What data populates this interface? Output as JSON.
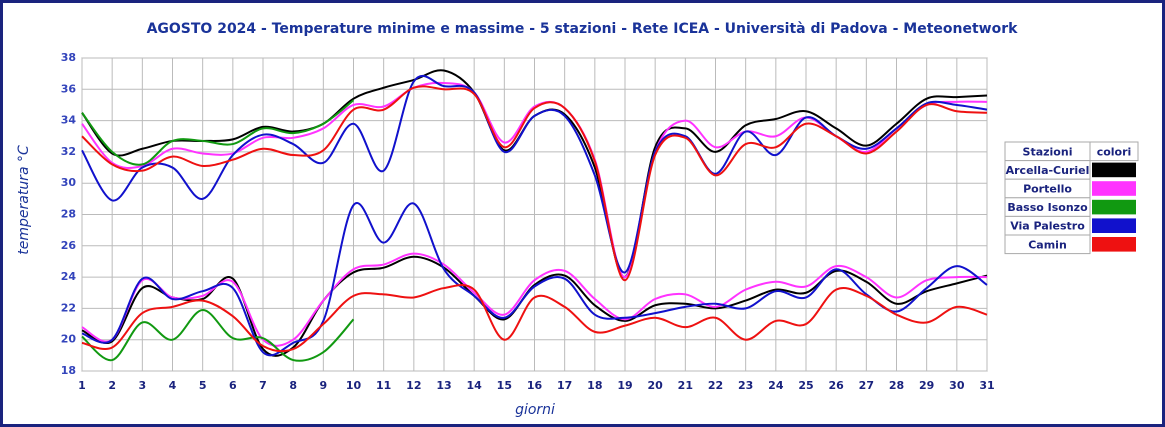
{
  "chart_data": {
    "type": "line",
    "title": "AGOSTO 2024 - Temperature minime e massime - 5 stazioni -  Rete ICEA - Università di Padova - Meteonetwork",
    "x_label": "giorni",
    "y_label": "temperatura °C",
    "legend_headers": [
      "Stazioni",
      "colori"
    ],
    "x": [
      1,
      2,
      3,
      4,
      5,
      6,
      7,
      8,
      9,
      10,
      11,
      12,
      13,
      14,
      15,
      16,
      17,
      18,
      19,
      20,
      21,
      22,
      23,
      24,
      25,
      26,
      27,
      28,
      29,
      30,
      31
    ],
    "xlim": [
      1,
      31
    ],
    "xticks": [
      1,
      2,
      3,
      4,
      5,
      6,
      7,
      8,
      9,
      10,
      11,
      12,
      13,
      14,
      15,
      16,
      17,
      18,
      19,
      20,
      21,
      22,
      23,
      24,
      25,
      26,
      27,
      28,
      29,
      30,
      31
    ],
    "ylim": [
      18,
      38
    ],
    "yticks": [
      18,
      20,
      22,
      24,
      26,
      28,
      30,
      32,
      34,
      36,
      38
    ],
    "grid": true,
    "series": [
      {
        "name": "Arcella-Curiel",
        "color": "#000000",
        "values": [
          34.5,
          31.9,
          32.2,
          32.7,
          32.7,
          32.8,
          33.6,
          33.3,
          33.8,
          35.4,
          36.1,
          36.6,
          37.2,
          35.8,
          32.1,
          34.3,
          34.4,
          31,
          24,
          32.3,
          33.5,
          32,
          33.7,
          34.1,
          34.6,
          33.5,
          32.4,
          33.8,
          35.4,
          35.5,
          35.6
        ],
        "values_min": [
          20.6,
          19.9,
          23.3,
          22.7,
          22.6,
          23.9,
          19.4,
          19.5,
          22.5,
          24.3,
          24.6,
          25.3,
          24.6,
          22.8,
          21.3,
          23.5,
          24.1,
          22.2,
          21.2,
          22.2,
          22.3,
          22,
          22.5,
          23.2,
          23,
          24.4,
          23.7,
          22.3,
          23.1,
          23.6,
          24.1
        ]
      },
      {
        "name": "Portello",
        "color": "#ff33ff",
        "values": [
          33.8,
          31.3,
          31.1,
          32.2,
          31.9,
          31.9,
          32.9,
          32.9,
          33.5,
          35,
          34.9,
          36.1,
          36.4,
          35.8,
          32.6,
          34.9,
          34.8,
          31.5,
          24,
          32,
          34,
          32.3,
          33.3,
          33,
          34.2,
          33,
          32,
          33.5,
          35,
          35.2,
          35.2
        ],
        "values_min": [
          20.8,
          20,
          23.8,
          22.7,
          22.8,
          23.7,
          20,
          20,
          22.5,
          24.5,
          24.8,
          25.5,
          24.8,
          23,
          21.6,
          23.8,
          24.4,
          22.6,
          21.3,
          22.6,
          22.9,
          22.1,
          23.2,
          23.7,
          23.4,
          24.7,
          24,
          22.7,
          23.8,
          24,
          24
        ]
      },
      {
        "name": "Basso Isonzo",
        "color": "#119911",
        "values": [
          34.5,
          32,
          31.2,
          32.7,
          32.7,
          32.5,
          33.5,
          33.2,
          33.8,
          35.3,
          null,
          null,
          null,
          null,
          null,
          null,
          null,
          null,
          null,
          null,
          null,
          null,
          null,
          null,
          null,
          null,
          null,
          null,
          null,
          null,
          null
        ],
        "values_min": [
          20.2,
          18.7,
          21.1,
          20,
          21.9,
          20.1,
          20.1,
          18.7,
          19.2,
          21.3,
          null,
          null,
          null,
          null,
          null,
          null,
          null,
          null,
          null,
          null,
          null,
          null,
          null,
          null,
          null,
          null,
          null,
          null,
          null,
          null,
          null
        ]
      },
      {
        "name": "Via Palestro",
        "color": "#1111cc",
        "values": [
          32.1,
          28.9,
          31,
          31,
          29,
          31.8,
          33.1,
          32.5,
          31.3,
          33.8,
          30.8,
          36.5,
          36.2,
          35.8,
          32,
          34.3,
          34.3,
          30.5,
          24.3,
          32,
          33,
          30.6,
          33.3,
          31.8,
          34.2,
          33,
          32.2,
          33.5,
          35.1,
          35,
          34.7
        ],
        "values_min": [
          20.4,
          20,
          23.9,
          22.6,
          23.1,
          23.3,
          19.2,
          19.8,
          21.2,
          28.6,
          26.2,
          28.7,
          24.5,
          22.8,
          21.4,
          23.4,
          23.9,
          21.6,
          21.4,
          21.7,
          22.1,
          22.3,
          22,
          23.1,
          22.7,
          24.5,
          22.9,
          21.8,
          23.3,
          24.7,
          23.5
        ]
      },
      {
        "name": "Camin",
        "color": "#ee1111",
        "values": [
          33,
          31.2,
          30.8,
          31.7,
          31.1,
          31.5,
          32.2,
          31.8,
          32.1,
          34.7,
          34.7,
          36.1,
          36,
          35.7,
          32.3,
          34.8,
          34.8,
          31.4,
          23.8,
          31.8,
          32.9,
          30.5,
          32.5,
          32.3,
          33.8,
          33,
          31.9,
          33.3,
          35,
          34.6,
          34.5
        ],
        "values_min": [
          19.8,
          19.5,
          21.7,
          22.1,
          22.5,
          21.5,
          19.6,
          19.4,
          21,
          22.8,
          22.9,
          22.7,
          23.3,
          23.2,
          20,
          22.7,
          22.1,
          20.5,
          20.9,
          21.4,
          20.8,
          21.4,
          20,
          21.2,
          21,
          23.2,
          22.8,
          21.6,
          21.1,
          22.1,
          21.6
        ]
      }
    ]
  }
}
